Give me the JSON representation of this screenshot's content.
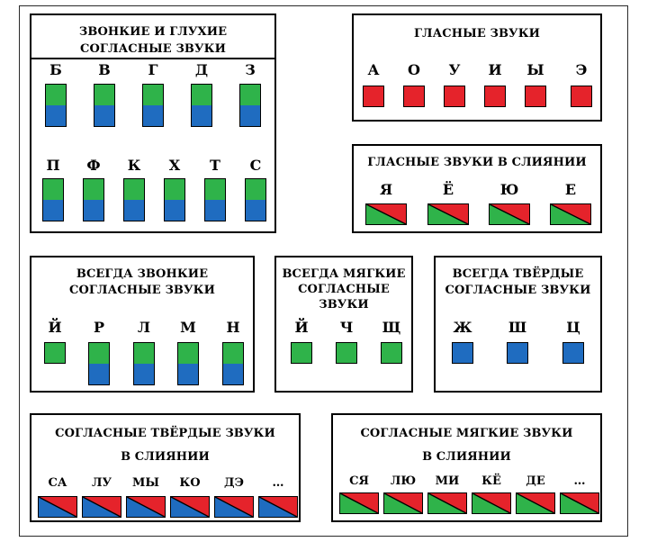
{
  "colors": {
    "vowel": "#e5232b",
    "voiced": "#2fb34a",
    "voiceless": "#1f6cc0",
    "soft": "#2fb34a",
    "hard": "#1f6cc0"
  },
  "voiced_voiceless": {
    "title_line1": "ЗВОНКИЕ И ГЛУХИЕ",
    "title_line2": "СОГЛАСНЫЕ ЗВУКИ",
    "row1": [
      "Б",
      "В",
      "Г",
      "Д",
      "З"
    ],
    "row2": [
      "П",
      "Ф",
      "К",
      "Х",
      "Т",
      "С"
    ]
  },
  "vowels": {
    "title": "ГЛАСНЫЕ ЗВУКИ",
    "letters": [
      "А",
      "О",
      "У",
      "И",
      "Ы",
      "Э"
    ]
  },
  "vowels_merged": {
    "title": "ГЛАСНЫЕ ЗВУКИ В СЛИЯНИИ",
    "letters": [
      "Я",
      "Ё",
      "Ю",
      "Е"
    ]
  },
  "always_voiced": {
    "title_line1": "ВСЕГДА ЗВОНКИЕ",
    "title_line2": "СОГЛАСНЫЕ ЗВУКИ",
    "letters": [
      "Й",
      "Р",
      "Л",
      "М",
      "Н"
    ]
  },
  "always_soft": {
    "title_line1": "ВСЕГДА МЯГКИЕ",
    "title_line2": "СОГЛАСНЫЕ",
    "title_line3": "ЗВУКИ",
    "letters": [
      "Й",
      "Ч",
      "Щ"
    ]
  },
  "always_hard": {
    "title_line1": "ВСЕГДА ТВЁРДЫЕ",
    "title_line2": "СОГЛАСНЫЕ ЗВУКИ",
    "letters": [
      "Ж",
      "Ш",
      "Ц"
    ]
  },
  "hard_merged": {
    "title_line1": "СОГЛАСНЫЕ ТВЁРДЫЕ ЗВУКИ",
    "title_line2": "В СЛИЯНИИ",
    "syllables": [
      "СА",
      "ЛУ",
      "МЫ",
      "КО",
      "ДЭ",
      "…"
    ]
  },
  "soft_merged": {
    "title_line1": "СОГЛАСНЫЕ МЯГКИЕ ЗВУКИ",
    "title_line2": "В СЛИЯНИИ",
    "syllables": [
      "СЯ",
      "ЛЮ",
      "МИ",
      "КЁ",
      "ДЕ",
      "…"
    ]
  }
}
